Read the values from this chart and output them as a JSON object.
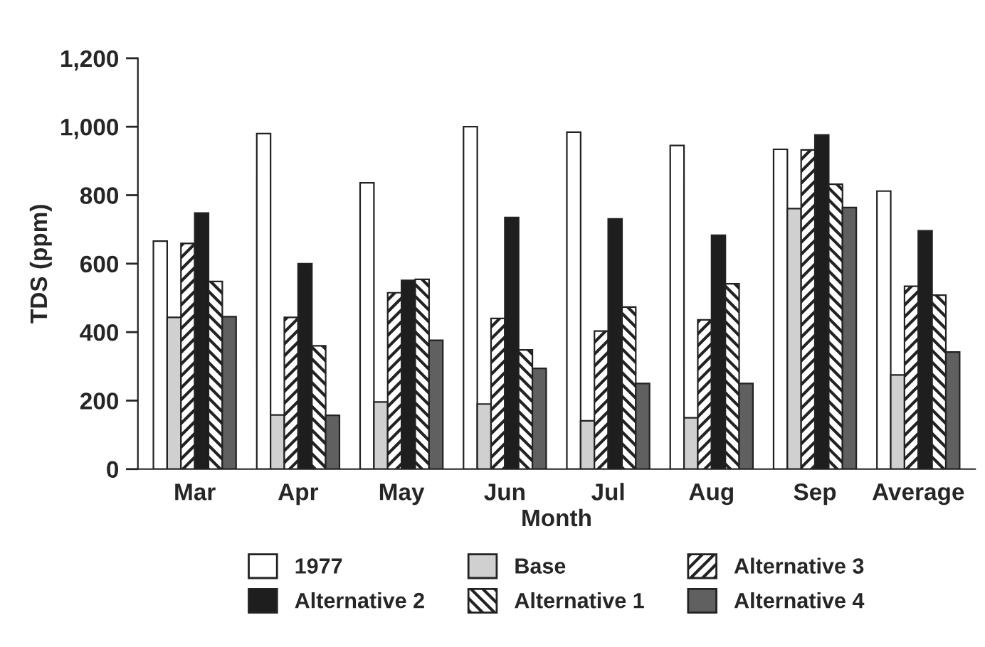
{
  "chart_data": {
    "type": "bar",
    "xlabel": "Month",
    "ylabel": "TDS (ppm)",
    "categories": [
      "Mar",
      "Apr",
      "May",
      "Jun",
      "Jul",
      "Aug",
      "Sep",
      "Average"
    ],
    "series": [
      {
        "name": "1977",
        "color": "#ffffff",
        "values": [
          666,
          980,
          836,
          1000,
          984,
          945,
          934,
          812
        ]
      },
      {
        "name": "Base",
        "color": "#d0d0d0",
        "values": [
          443,
          158,
          196,
          190,
          141,
          150,
          761,
          275
        ]
      },
      {
        "name": "Alternative 3",
        "color": "#222222",
        "values": [
          659,
          443,
          515,
          440,
          403,
          436,
          932,
          534
        ]
      },
      {
        "name": "Alternative 2",
        "color": "#1e1e1e",
        "values": [
          748,
          600,
          551,
          735,
          731,
          683,
          976,
          696
        ]
      },
      {
        "name": "Alternative 1",
        "color": "#222222",
        "values": [
          548,
          360,
          554,
          348,
          473,
          541,
          832,
          508
        ]
      },
      {
        "name": "Alternative 4",
        "color": "#606060",
        "values": [
          445,
          157,
          376,
          294,
          250,
          250,
          764,
          342
        ]
      }
    ],
    "ylim": [
      0,
      1200
    ],
    "yticks": [
      0,
      {
        "value": 200,
        "label": "200"
      },
      {
        "value": 400,
        "label": "400"
      },
      {
        "value": 600,
        "label": "600"
      },
      {
        "value": 800,
        "label": "800"
      },
      {
        "value": 1000,
        "label": "1,000"
      },
      {
        "value": 1200,
        "label": "1,200"
      }
    ],
    "grid": false,
    "legend": "bottom"
  }
}
